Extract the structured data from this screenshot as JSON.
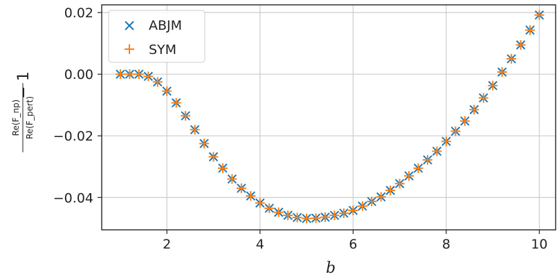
{
  "chart_data": {
    "type": "scatter",
    "xlabel": "b",
    "ylabel": {
      "numerator": "Re(F_np)",
      "denominator": "Re(F_pert)",
      "suffix": "− 1"
    },
    "xlim": [
      0.6,
      10.35
    ],
    "ylim": [
      -0.0505,
      0.0225
    ],
    "x_ticks": [
      2,
      4,
      6,
      8,
      10
    ],
    "x_tick_labels": [
      "2",
      "4",
      "6",
      "8",
      "10"
    ],
    "y_ticks": [
      0.02,
      0.0,
      -0.02,
      -0.04
    ],
    "y_tick_labels": [
      "0.02",
      "0.00",
      "−0.02",
      "−0.04"
    ],
    "grid": true,
    "legend_position": "top-left",
    "x": [
      1.0,
      1.2,
      1.4,
      1.6,
      1.8,
      2.0,
      2.2,
      2.4,
      2.6,
      2.8,
      3.0,
      3.2,
      3.4,
      3.6,
      3.8,
      4.0,
      4.2,
      4.4,
      4.6,
      4.8,
      5.0,
      5.2,
      5.4,
      5.6,
      5.8,
      6.0,
      6.2,
      6.4,
      6.6,
      6.8,
      7.0,
      7.2,
      7.4,
      7.6,
      7.8,
      8.0,
      8.2,
      8.4,
      8.6,
      8.8,
      9.0,
      9.2,
      9.4,
      9.6,
      9.8,
      10.0
    ],
    "series": [
      {
        "name": "ABJM",
        "marker": "x",
        "color": "#1f77b4",
        "values": [
          0.0,
          0.0,
          0.0,
          -0.0007,
          -0.0025,
          -0.0055,
          -0.0093,
          -0.0135,
          -0.018,
          -0.0225,
          -0.0268,
          -0.0305,
          -0.034,
          -0.037,
          -0.0395,
          -0.0418,
          -0.0435,
          -0.0448,
          -0.0458,
          -0.0465,
          -0.0468,
          -0.0467,
          -0.0464,
          -0.0458,
          -0.0451,
          -0.0442,
          -0.0428,
          -0.0413,
          -0.0398,
          -0.0377,
          -0.0355,
          -0.033,
          -0.0305,
          -0.0278,
          -0.025,
          -0.0218,
          -0.0185,
          -0.0152,
          -0.0115,
          -0.0077,
          -0.0037,
          0.0007,
          0.005,
          0.0095,
          0.0143,
          0.0192
        ]
      },
      {
        "name": "SYM",
        "marker": "+",
        "color": "#ff7f0e",
        "values": [
          0.0,
          0.0,
          0.0,
          -0.0007,
          -0.0025,
          -0.0055,
          -0.0093,
          -0.0135,
          -0.018,
          -0.0225,
          -0.0268,
          -0.0305,
          -0.034,
          -0.037,
          -0.0395,
          -0.0418,
          -0.0435,
          -0.0448,
          -0.0458,
          -0.0465,
          -0.0468,
          -0.0467,
          -0.0464,
          -0.0458,
          -0.0451,
          -0.0442,
          -0.0428,
          -0.0413,
          -0.0398,
          -0.0377,
          -0.0355,
          -0.033,
          -0.0305,
          -0.0278,
          -0.025,
          -0.0218,
          -0.0185,
          -0.0152,
          -0.0115,
          -0.0077,
          -0.0037,
          0.0007,
          0.005,
          0.0095,
          0.0143,
          0.0192
        ]
      }
    ]
  }
}
